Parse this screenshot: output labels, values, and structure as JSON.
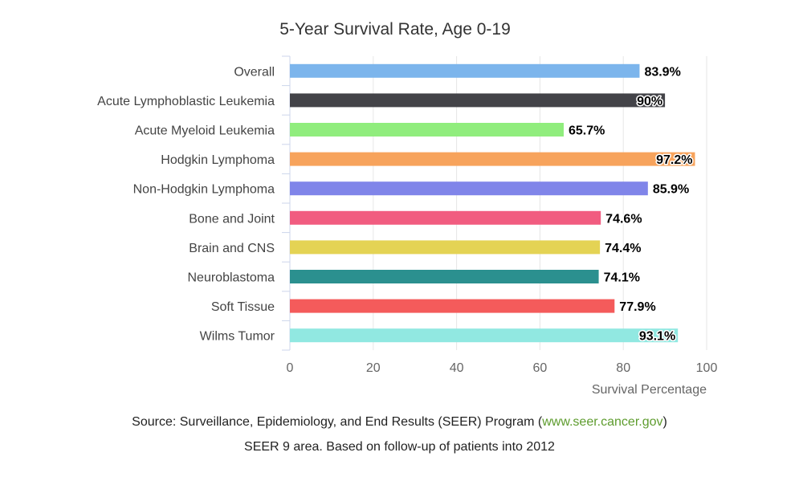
{
  "chart_data": {
    "type": "bar",
    "orientation": "horizontal",
    "title": "5-Year Survival Rate, Age 0-19",
    "xlabel": "Survival Percentage",
    "ylabel": "",
    "xlim": [
      0,
      100
    ],
    "xticks": [
      0,
      20,
      40,
      60,
      80,
      100
    ],
    "grid": true,
    "legend": "none",
    "categories": [
      "Overall",
      "Acute Lymphoblastic Leukemia",
      "Acute Myeloid Leukemia",
      "Hodgkin Lymphoma",
      "Non-Hodgkin Lymphoma",
      "Bone and Joint",
      "Brain and CNS",
      "Neuroblastoma",
      "Soft Tissue",
      "Wilms Tumor"
    ],
    "values": [
      83.9,
      90,
      65.7,
      97.2,
      85.9,
      74.6,
      74.4,
      74.1,
      77.9,
      93.1
    ],
    "data_labels": [
      "83.9%",
      "90%",
      "65.7%",
      "97.2%",
      "85.9%",
      "74.6%",
      "74.4%",
      "74.1%",
      "77.9%",
      "93.1%"
    ],
    "colors": [
      "#7cb5ec",
      "#434348",
      "#90ed7d",
      "#f7a35c",
      "#8085e9",
      "#f15c80",
      "#e4d354",
      "#2b908f",
      "#f45b5b",
      "#91e8e1"
    ]
  },
  "footer": {
    "source_prefix": "Source: Surveillance, Epidemiology, and End Results (SEER) Program (",
    "source_link": "www.seer.cancer.gov",
    "source_suffix": ")",
    "note": "SEER 9 area. Based on follow-up of patients into 2012"
  }
}
